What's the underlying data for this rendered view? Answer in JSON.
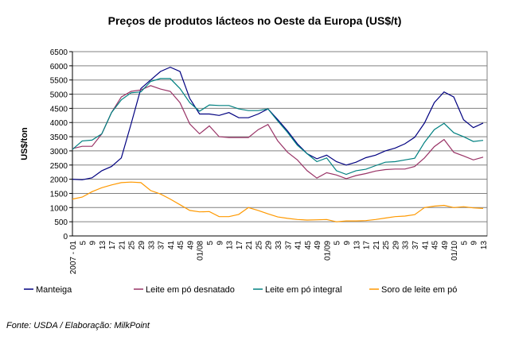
{
  "chart_data": {
    "type": "line",
    "title": "Preços de produtos lácteos no Oeste da Europa (US$/t)",
    "xlabel": "",
    "ylabel": "US$/ton",
    "ylim": [
      0,
      6500
    ],
    "yticks": [
      0,
      500,
      1000,
      1500,
      2000,
      2500,
      3000,
      3500,
      4000,
      4500,
      5000,
      5500,
      6000,
      6500
    ],
    "grid": true,
    "legend_position": "bottom",
    "categories": [
      "2007 - 01",
      "5",
      "9",
      "13",
      "17",
      "21",
      "25",
      "29",
      "33",
      "37",
      "41",
      "45",
      "49",
      "01/08",
      "5",
      "9",
      "13",
      "17",
      "21",
      "25",
      "29",
      "33",
      "37",
      "41",
      "45",
      "49",
      "01/09",
      "5",
      "9",
      "13",
      "17",
      "21",
      "25",
      "29",
      "33",
      "37",
      "41",
      "45",
      "49",
      "01/10",
      "5",
      "9",
      "13"
    ],
    "series": [
      {
        "name": "Manteiga",
        "color": "#000080",
        "values": [
          2000,
          1980,
          2050,
          2300,
          2450,
          2750,
          3950,
          5200,
          5500,
          5800,
          5950,
          5800,
          4850,
          4300,
          4300,
          4250,
          4350,
          4170,
          4170,
          4300,
          4480,
          4100,
          3700,
          3250,
          2900,
          2720,
          2850,
          2620,
          2500,
          2600,
          2760,
          2850,
          3000,
          3100,
          3250,
          3480,
          3980,
          4700,
          5080,
          4900,
          4100,
          3820,
          3980
        ]
      },
      {
        "name": "Leite em pó desnatado",
        "color": "#993366",
        "values": [
          3080,
          3160,
          3160,
          3600,
          4350,
          4900,
          5100,
          5150,
          5300,
          5180,
          5100,
          4700,
          3950,
          3600,
          3880,
          3500,
          3470,
          3470,
          3470,
          3750,
          3930,
          3350,
          2950,
          2680,
          2300,
          2040,
          2230,
          2150,
          2020,
          2130,
          2200,
          2290,
          2340,
          2360,
          2360,
          2450,
          2750,
          3150,
          3400,
          2950,
          2820,
          2680,
          2780
        ]
      },
      {
        "name": "Leite em pó integral",
        "color": "#008080",
        "values": [
          3050,
          3350,
          3380,
          3600,
          4350,
          4800,
          5050,
          5080,
          5450,
          5550,
          5550,
          5200,
          4700,
          4400,
          4620,
          4600,
          4600,
          4480,
          4420,
          4420,
          4480,
          4050,
          3650,
          3200,
          2900,
          2620,
          2750,
          2300,
          2170,
          2300,
          2350,
          2480,
          2600,
          2620,
          2680,
          2740,
          3300,
          3750,
          3970,
          3640,
          3500,
          3330,
          3370
        ]
      },
      {
        "name": "Soro de leite em pó",
        "color": "#ff9900",
        "values": [
          1300,
          1370,
          1560,
          1700,
          1800,
          1880,
          1900,
          1880,
          1600,
          1480,
          1300,
          1100,
          900,
          850,
          860,
          680,
          680,
          760,
          1000,
          900,
          780,
          670,
          620,
          580,
          560,
          570,
          580,
          500,
          530,
          530,
          540,
          580,
          630,
          680,
          700,
          750,
          1000,
          1050,
          1080,
          1000,
          1030,
          990,
          970
        ]
      }
    ]
  },
  "source": "Fonte: USDA / Elaboração: MilkPoint"
}
